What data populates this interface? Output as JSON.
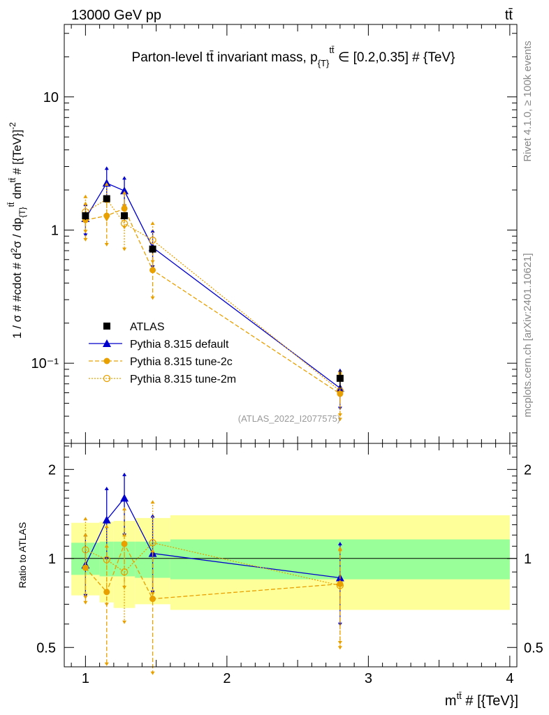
{
  "header": {
    "energy": "13000 GeV pp",
    "process": "tt̄"
  },
  "side_labels": {
    "rivet": "Rivet 4.1.0, ≥ 100k events",
    "mcplots": "mcplots.cern.ch [arXiv:2401.10621]"
  },
  "chart_data": [
    {
      "type": "line",
      "panel": "main",
      "title": "Parton-level tt̄ invariant mass, p_{T}^{tt̄} ∈ [0.2,0.35] # {TeV}",
      "xlabel": "m^{tt̄} # [{TeV}]",
      "ylabel": "1 / σ # #cdot # d²σ / dp_{T}^{tt̄} dm^{tt̄} # [{TeV}]^{-2}",
      "yscale": "log",
      "xlim": [
        0.85,
        4.05
      ],
      "ylim": [
        0.025,
        35
      ],
      "y_ticks": [
        {
          "v": 0.1,
          "label": "10⁻¹"
        },
        {
          "v": 1,
          "label": "1"
        },
        {
          "v": 10,
          "label": "10"
        }
      ],
      "watermark": "(ATLAS_2022_I2077575)",
      "series": [
        {
          "name": "ATLAS",
          "color": "#000000",
          "bins": [
            [
              0.9,
              1.1
            ],
            [
              1.1,
              1.2
            ],
            [
              1.2,
              1.35
            ],
            [
              1.35,
              1.6
            ],
            [
              1.6,
              4.0
            ]
          ],
          "x": [
            1.0,
            1.15,
            1.275,
            1.475,
            2.8
          ],
          "y": [
            1.28,
            1.72,
            1.28,
            0.72,
            0.077
          ],
          "yerr": [
            0.09,
            0.1,
            0.08,
            0.05,
            0.012
          ]
        },
        {
          "name": "Pythia 8.315 default",
          "color": "#0000cc",
          "x": [
            1.0,
            1.15,
            1.275,
            1.475,
            2.8
          ],
          "y": [
            1.22,
            2.25,
            1.97,
            0.74,
            0.065
          ],
          "ylo": [
            0.92,
            1.72,
            1.52,
            0.53,
            0.046
          ],
          "yhi": [
            1.55,
            2.9,
            2.45,
            0.98,
            0.088
          ]
        },
        {
          "name": "Pythia 8.315 tune-2c",
          "color": "#e8a000",
          "x": [
            1.0,
            1.15,
            1.275,
            1.475,
            2.8
          ],
          "y": [
            1.19,
            1.28,
            1.45,
            0.5,
            0.059
          ],
          "ylo": [
            0.85,
            0.78,
            1.05,
            0.31,
            0.038
          ],
          "yhi": [
            1.58,
            1.78,
            1.9,
            0.7,
            0.084
          ]
        },
        {
          "name": "Pythia 8.315 tune-2m",
          "color": "#e8a000",
          "x": [
            1.0,
            1.15,
            1.275,
            1.475,
            2.8
          ],
          "y": [
            1.37,
            1.7,
            1.12,
            0.84,
            0.062
          ],
          "ylo": [
            0.98,
            1.2,
            0.72,
            0.58,
            0.041
          ],
          "yhi": [
            1.78,
            2.2,
            1.55,
            1.12,
            0.086
          ]
        }
      ]
    },
    {
      "type": "line",
      "panel": "ratio",
      "ylabel": "Ratio to ATLAS",
      "yscale": "log",
      "xlim": [
        0.85,
        4.05
      ],
      "ylim": [
        0.43,
        2.45
      ],
      "y_ticks": [
        {
          "v": 0.5,
          "label": "0.5"
        },
        {
          "v": 1,
          "label": "1"
        },
        {
          "v": 2,
          "label": "2"
        }
      ],
      "x_ticks": [
        {
          "v": 1,
          "label": "1"
        },
        {
          "v": 2,
          "label": "2"
        },
        {
          "v": 3,
          "label": "3"
        },
        {
          "v": 4,
          "label": "4"
        }
      ],
      "bands": {
        "bins": [
          [
            0.9,
            1.1
          ],
          [
            1.1,
            1.2
          ],
          [
            1.2,
            1.35
          ],
          [
            1.35,
            1.6
          ],
          [
            1.6,
            4.0
          ]
        ],
        "inner_lo": [
          0.88,
          0.87,
          0.87,
          0.86,
          0.85
        ],
        "inner_hi": [
          1.13,
          1.14,
          1.14,
          1.14,
          1.16
        ],
        "outer_lo": [
          0.75,
          0.71,
          0.68,
          0.7,
          0.67
        ],
        "outer_hi": [
          1.32,
          1.33,
          1.34,
          1.37,
          1.4
        ],
        "inner_color": "#99ff99",
        "outer_color": "#ffff99"
      },
      "series": [
        {
          "name": "Pythia 8.315 default",
          "color": "#0000cc",
          "x": [
            1.0,
            1.15,
            1.275,
            1.475,
            2.8
          ],
          "y": [
            0.95,
            1.35,
            1.6,
            1.04,
            0.86
          ],
          "ylo": [
            0.75,
            1.0,
            1.2,
            0.77,
            0.6
          ],
          "yhi": [
            1.2,
            1.72,
            1.92,
            1.39,
            1.12
          ]
        },
        {
          "name": "Pythia 8.315 tune-2c",
          "color": "#e8a000",
          "x": [
            1.0,
            1.15,
            1.275,
            1.475,
            2.8
          ],
          "y": [
            0.93,
            0.77,
            1.12,
            0.73,
            0.82
          ],
          "ylo": [
            0.71,
            0.44,
            0.8,
            0.41,
            0.52
          ],
          "yhi": [
            1.2,
            1.1,
            1.47,
            1.06,
            1.08
          ]
        },
        {
          "name": "Pythia 8.315 tune-2m",
          "color": "#e8a000",
          "x": [
            1.0,
            1.15,
            1.275,
            1.475,
            2.8
          ],
          "y": [
            1.07,
            0.99,
            0.9,
            1.13,
            0.81
          ],
          "ylo": [
            0.74,
            0.7,
            0.61,
            0.76,
            0.5
          ],
          "yhi": [
            1.36,
            1.28,
            1.2,
            1.55,
            1.07
          ]
        }
      ]
    }
  ]
}
